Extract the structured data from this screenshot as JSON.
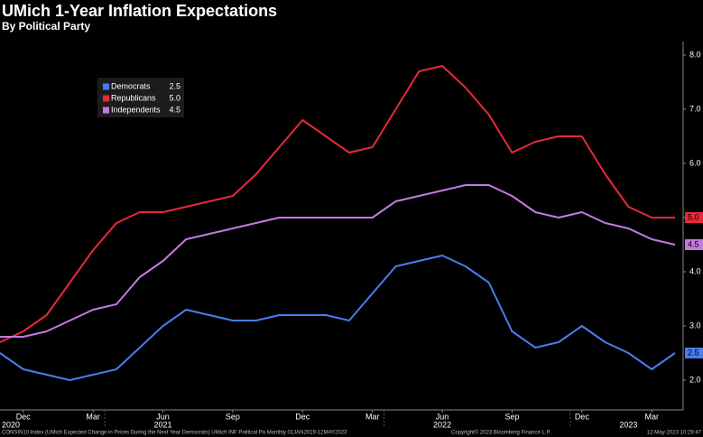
{
  "chart_data": {
    "type": "line",
    "title": "UMich 1-Year Inflation Expectations",
    "subtitle": "By Political Party",
    "categories": [
      null,
      "Dec",
      null,
      null,
      "Mar",
      null,
      null,
      "Jun",
      null,
      null,
      "Sep",
      null,
      null,
      "Dec",
      null,
      null,
      "Mar",
      null,
      null,
      "Jun",
      null,
      null,
      "Sep",
      null,
      null,
      "Dec",
      null,
      null,
      "Mar",
      null
    ],
    "year_categories": [
      "2020",
      null,
      null,
      null,
      null,
      null,
      null,
      "2021",
      null,
      null,
      null,
      null,
      null,
      null,
      null,
      null,
      null,
      null,
      null,
      "2022",
      null,
      null,
      null,
      null,
      null,
      null,
      null,
      "2023",
      null,
      null
    ],
    "series": [
      {
        "name": "Democrats",
        "color": "#4a7cf0",
        "values": [
          2.5,
          2.2,
          2.1,
          2.0,
          2.1,
          2.2,
          2.6,
          3.0,
          3.3,
          3.2,
          3.1,
          3.1,
          3.2,
          3.2,
          3.2,
          3.1,
          3.6,
          4.1,
          4.2,
          4.3,
          4.1,
          3.8,
          2.9,
          2.6,
          2.7,
          3.0,
          2.7,
          2.5,
          2.2,
          2.5
        ],
        "value_labels": [
          null,
          null,
          null,
          null,
          null,
          null,
          null,
          null,
          null,
          null,
          null,
          null,
          null,
          null,
          null,
          null,
          null,
          null,
          null,
          null,
          null,
          null,
          null,
          null,
          null,
          null,
          null,
          null,
          null,
          "2.5"
        ]
      },
      {
        "name": "Republicans",
        "color": "#e8283c",
        "values": [
          2.7,
          2.9,
          3.2,
          3.8,
          4.4,
          4.9,
          5.1,
          5.1,
          5.2,
          5.3,
          5.4,
          5.8,
          6.3,
          6.8,
          6.5,
          6.2,
          6.3,
          7.0,
          7.7,
          7.8,
          7.4,
          6.9,
          6.2,
          6.4,
          6.5,
          6.5,
          5.8,
          5.2,
          5.0,
          5.0
        ],
        "value_labels": [
          null,
          null,
          null,
          null,
          null,
          null,
          null,
          null,
          null,
          null,
          null,
          null,
          null,
          null,
          null,
          null,
          null,
          null,
          null,
          null,
          null,
          null,
          null,
          null,
          null,
          null,
          null,
          null,
          null,
          "5.0"
        ]
      },
      {
        "name": "Independents",
        "color": "#c47ae0",
        "values": [
          2.8,
          2.8,
          2.9,
          3.1,
          3.3,
          3.4,
          3.9,
          4.2,
          4.6,
          4.7,
          4.8,
          4.9,
          5.0,
          5.0,
          5.0,
          5.0,
          5.0,
          5.3,
          5.4,
          5.5,
          5.6,
          5.6,
          5.4,
          5.1,
          5.0,
          5.1,
          4.9,
          4.8,
          4.6,
          4.5
        ],
        "value_labels": [
          null,
          null,
          null,
          null,
          null,
          null,
          null,
          null,
          null,
          null,
          null,
          null,
          null,
          null,
          null,
          null,
          null,
          null,
          null,
          null,
          null,
          null,
          null,
          null,
          null,
          null,
          null,
          null,
          null,
          "4.5"
        ]
      }
    ],
    "ylim": [
      1.45,
      8.25
    ],
    "yticks": [
      {
        "value": 2,
        "label": "2.0"
      },
      {
        "value": 3,
        "label": "3.0"
      },
      {
        "value": 4,
        "label": "4.0"
      },
      {
        "value": 5,
        "label": "5.0"
      },
      {
        "value": 6,
        "label": "6.0"
      },
      {
        "value": 7,
        "label": "7.0"
      },
      {
        "value": 8,
        "label": "8.0"
      }
    ],
    "y_axis_side": "right",
    "grid": false,
    "legend": "upper-left",
    "footer": {
      "source": "CONSIN10 Index (UMich Expected Change in Prices During the Next Year Democrats) UMich INF Political Pa  Monthly 01JAN2019-12MAY2023",
      "copyright": "Copyright© 2023 Bloomberg Finance L.P.",
      "timestamp": "12-May-2023 10:29:47"
    }
  }
}
